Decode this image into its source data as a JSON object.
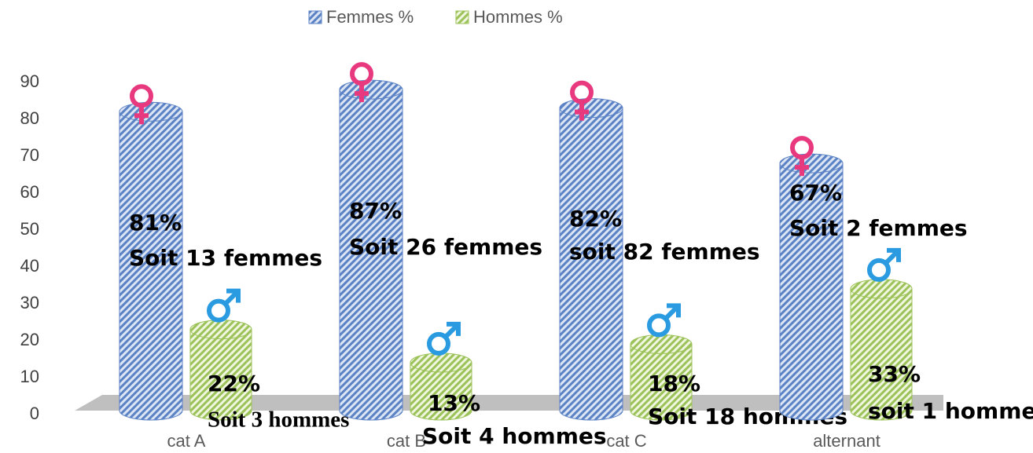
{
  "chart_data": {
    "type": "bar3d",
    "categories": [
      "cat A",
      "cat B",
      "cat C",
      "alternant"
    ],
    "series": [
      {
        "name": "Femmes  %",
        "color": "#5b82c4",
        "values": [
          81,
          87,
          82,
          67
        ],
        "value_labels": [
          "81%",
          "87%",
          "82%",
          "67%"
        ],
        "count_labels": [
          "Soit 13 femmes",
          "Soit 26 femmes",
          "soit 82 femmes",
          "Soit 2 femmes"
        ]
      },
      {
        "name": "Hommes %",
        "color": "#9cc25a",
        "values": [
          22,
          13,
          18,
          33
        ],
        "value_labels": [
          "22%",
          "13%",
          "18%",
          "33%"
        ],
        "count_labels": [
          "Soit 3 hommes",
          "Soit 4 hommes",
          "Soit 18 hommes",
          "soit 1 homme"
        ]
      }
    ],
    "ylim": [
      0,
      90
    ],
    "yticks": [
      0,
      10,
      20,
      30,
      40,
      50,
      60,
      70,
      80,
      90
    ],
    "legend": "top"
  }
}
